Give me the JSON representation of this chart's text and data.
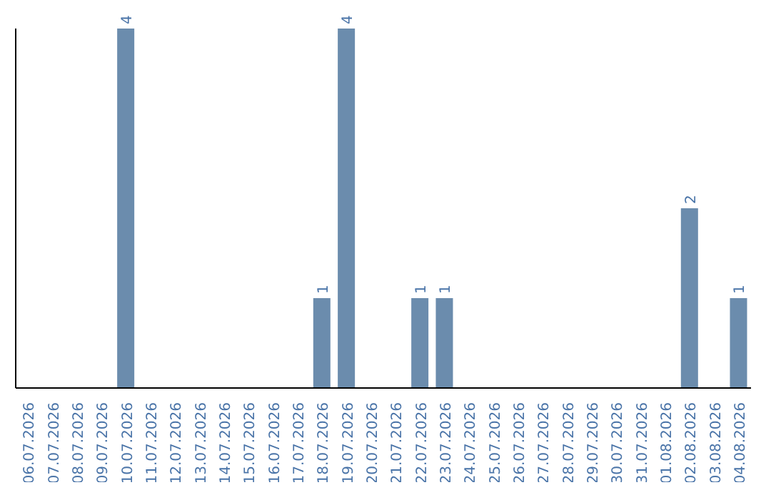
{
  "chart_data": {
    "type": "bar",
    "categories": [
      "06.07.2026",
      "07.07.2026",
      "08.07.2026",
      "09.07.2026",
      "10.07.2026",
      "11.07.2026",
      "12.07.2026",
      "13.07.2026",
      "14.07.2026",
      "15.07.2026",
      "16.07.2026",
      "17.07.2026",
      "18.07.2026",
      "19.07.2026",
      "20.07.2026",
      "21.07.2026",
      "22.07.2026",
      "23.07.2026",
      "24.07.2026",
      "25.07.2026",
      "26.07.2026",
      "27.07.2026",
      "28.07.2026",
      "29.07.2026",
      "30.07.2026",
      "31.07.2026",
      "01.08.2026",
      "02.08.2026",
      "03.08.2026",
      "04.08.2026"
    ],
    "values": [
      0,
      0,
      0,
      0,
      4,
      0,
      0,
      0,
      0,
      0,
      0,
      0,
      1,
      4,
      0,
      0,
      1,
      1,
      0,
      0,
      0,
      0,
      0,
      0,
      0,
      0,
      0,
      2,
      0,
      1
    ],
    "value_labels": [
      null,
      null,
      null,
      null,
      "4",
      null,
      null,
      null,
      null,
      null,
      null,
      null,
      "1",
      "4",
      null,
      null,
      "1",
      "1",
      null,
      null,
      null,
      null,
      null,
      null,
      null,
      null,
      null,
      "2",
      null,
      "1"
    ],
    "color": "#6b8cad",
    "tick_labels": "x"
  }
}
